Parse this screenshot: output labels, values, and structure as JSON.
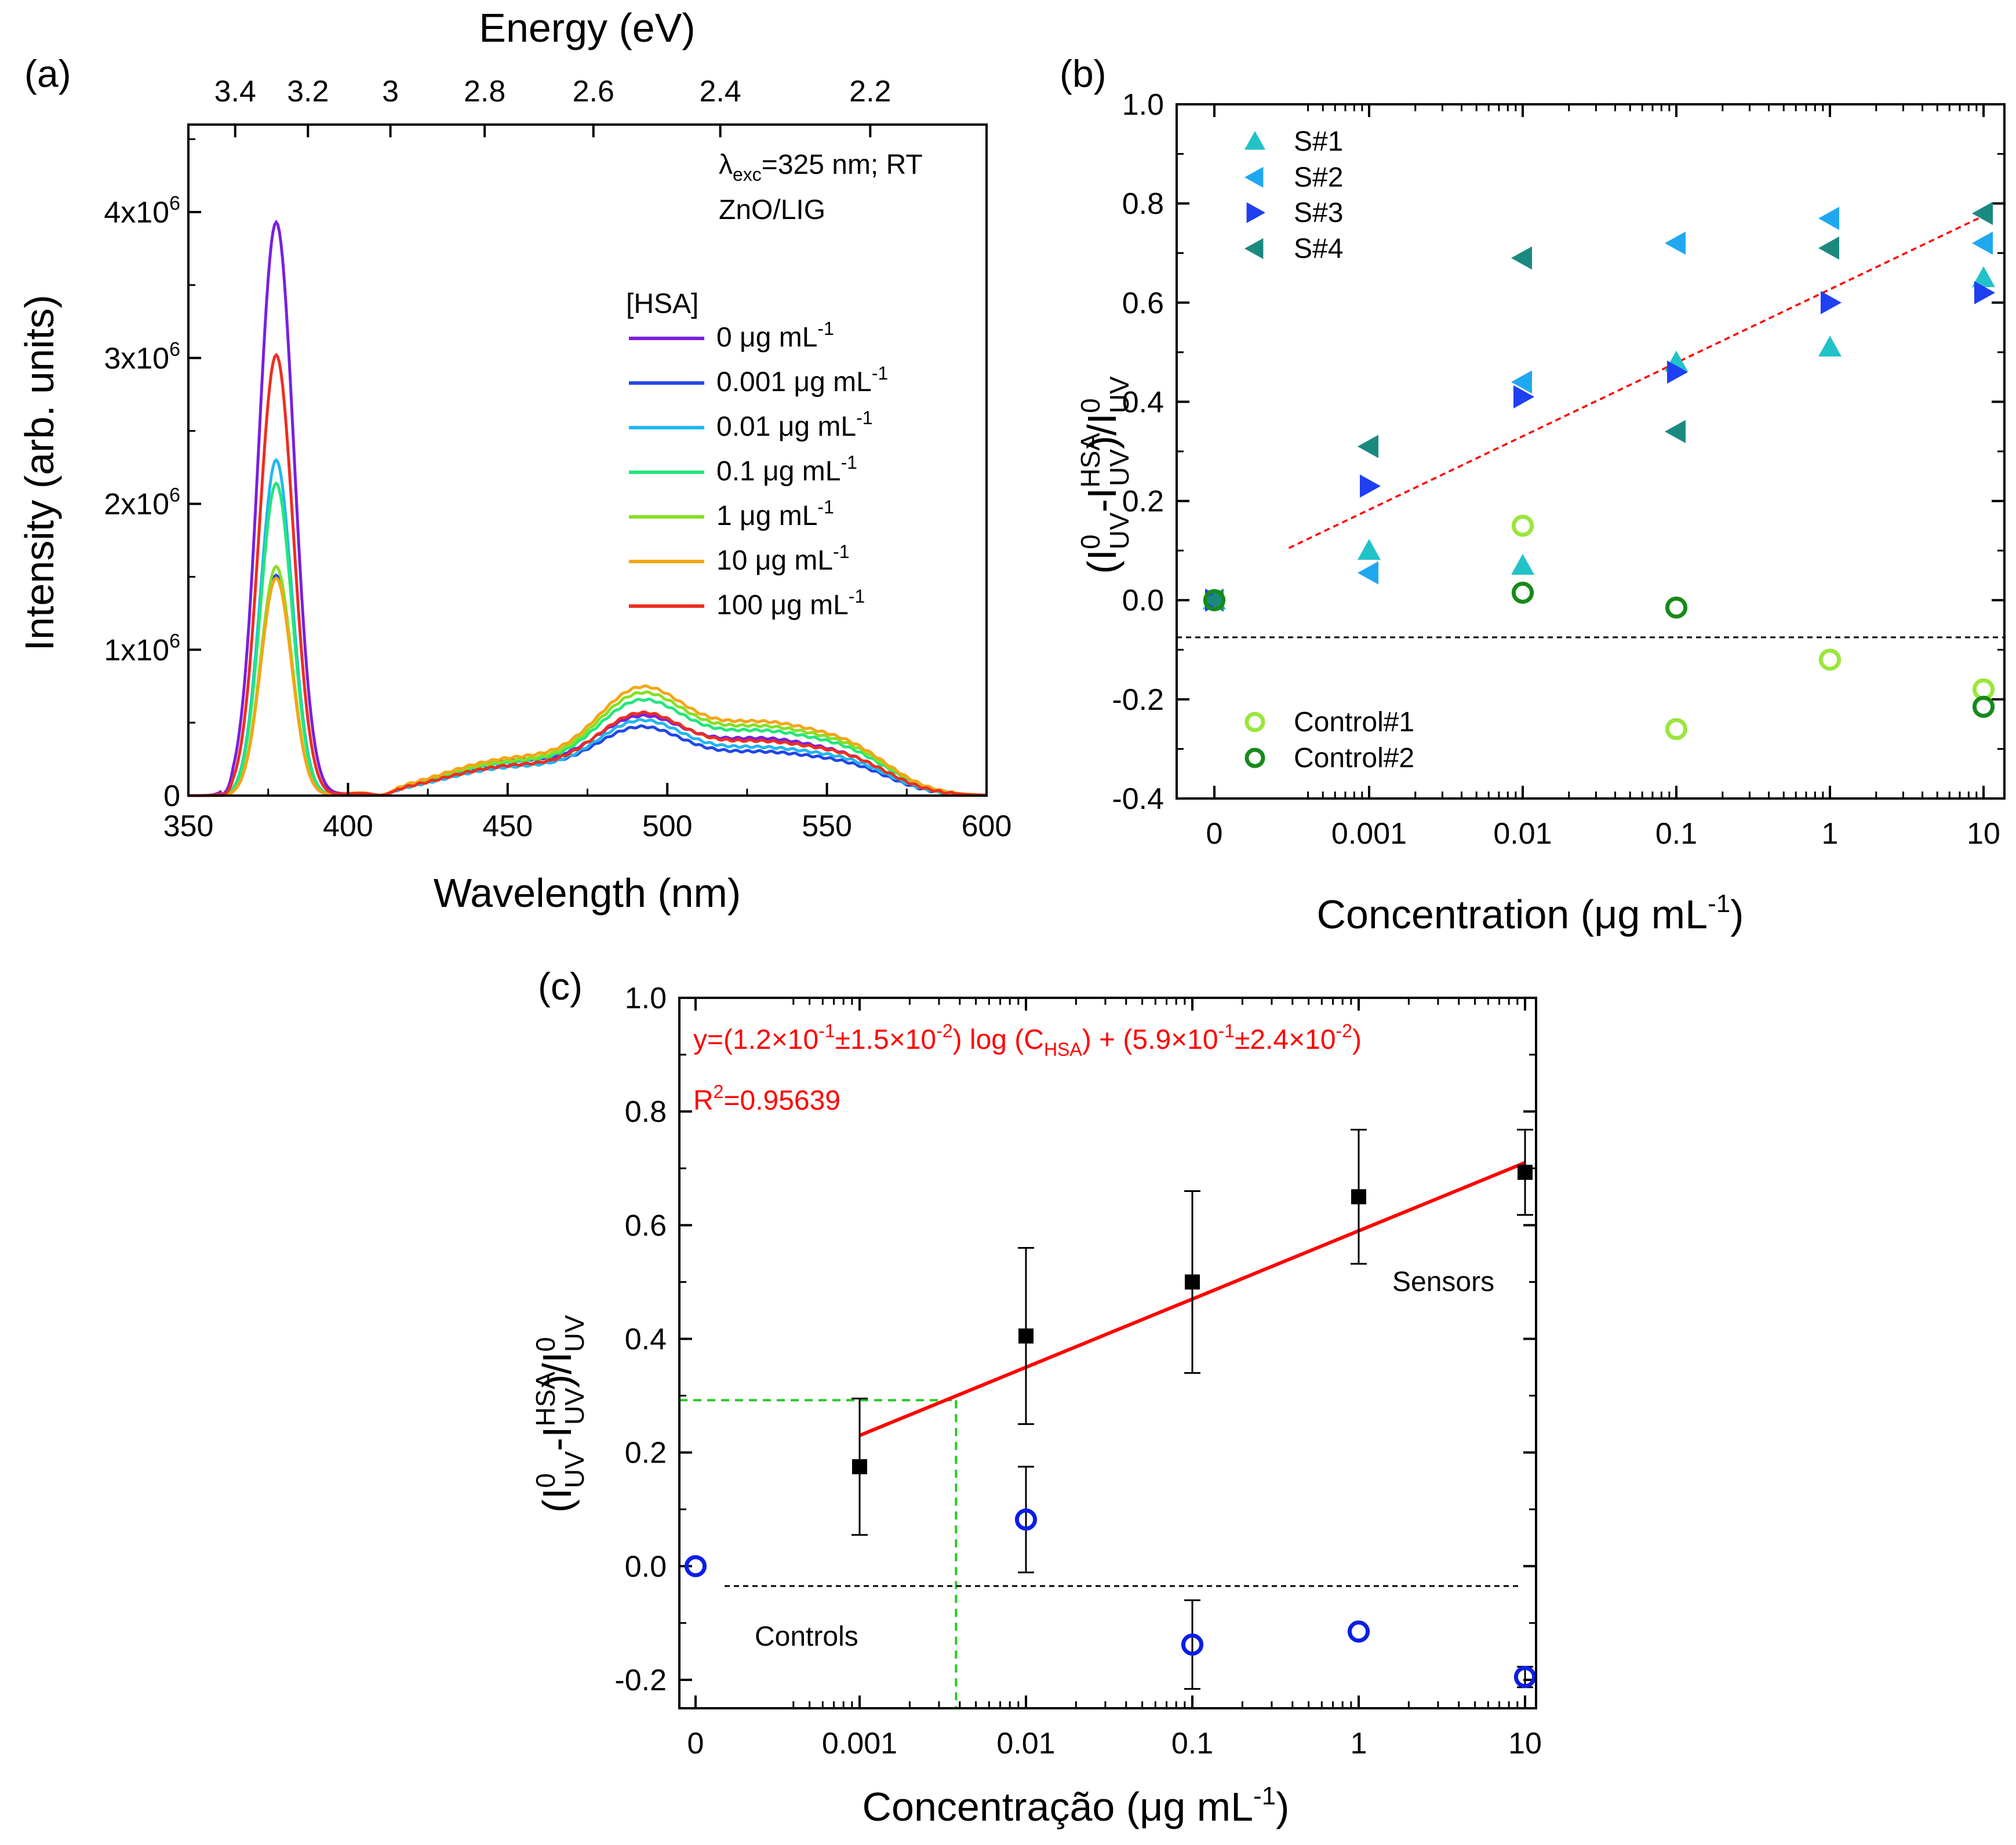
{
  "colors": {
    "c0": "#7a1fe0",
    "c0001": "#2147e6",
    "c001": "#22b7ef",
    "c01": "#24e67c",
    "c1": "#86e024",
    "c10": "#f5a515",
    "c100": "#ee2e1f",
    "s1": "#22c2c9",
    "s2": "#1fa8f0",
    "s3": "#1f3ff2",
    "s4": "#1a8a80",
    "control1": "#9be63c",
    "control2": "#178a1a",
    "fit": "#ff0000",
    "dash_green": "#22cc22",
    "control_blue": "#0a1ee6"
  },
  "chart_data": [
    {
      "panel": "(a)",
      "type": "line",
      "title": "",
      "xlabel": "Wavelength (nm)",
      "ylabel": "Intensity (arb. units)",
      "top_xlabel": "Energy (eV)",
      "xlim": [
        350,
        600
      ],
      "ylim": [
        0,
        4600000
      ],
      "x_ticks": [
        "350",
        "400",
        "450",
        "500",
        "550",
        "600"
      ],
      "x_tick_values": [
        350,
        400,
        450,
        500,
        550,
        600
      ],
      "y_ticks": [
        {
          "base": "0",
          "exp": ""
        },
        {
          "base": "1x10",
          "exp": "6"
        },
        {
          "base": "2x10",
          "exp": "6"
        },
        {
          "base": "3x10",
          "exp": "6"
        },
        {
          "base": "4x10",
          "exp": "6"
        }
      ],
      "y_tick_values": [
        0,
        1000000,
        2000000,
        3000000,
        4000000
      ],
      "top_ticks": [
        "3.4",
        "3.2",
        "3",
        "2.8",
        "2.6",
        "2.4",
        "2.2"
      ],
      "top_tick_values": [
        3.4,
        3.2,
        3.0,
        2.8,
        2.6,
        2.4,
        2.2
      ],
      "annotation_lambda": "λ",
      "annotation_exc": "exc",
      "annotation_rest": "=325 nm; RT",
      "annotation_sample": "ZnO/LIG",
      "legend_title": "[HSA]",
      "series": [
        {
          "name": "0 μg mL",
          "sup": "-1",
          "color_key": "c0",
          "peak": 3930000,
          "width": 5.5,
          "visA": 230000,
          "visB": 420000,
          "visC": 380000
        },
        {
          "name": "0.001 μg mL",
          "sup": "-1",
          "color_key": "c0001",
          "peak": 1510000,
          "width": 4.8,
          "visA": 200000,
          "visB": 370000,
          "visC": 290000
        },
        {
          "name": "0.01 μg mL",
          "sup": "-1",
          "color_key": "c001",
          "peak": 2300000,
          "width": 4.9,
          "visA": 190000,
          "visB": 410000,
          "visC": 320000
        },
        {
          "name": "0.1 μg mL",
          "sup": "-1",
          "color_key": "c01",
          "peak": 2140000,
          "width": 4.9,
          "visA": 220000,
          "visB": 520000,
          "visC": 430000
        },
        {
          "name": "1 μg mL",
          "sup": "-1",
          "color_key": "c1",
          "peak": 1570000,
          "width": 4.8,
          "visA": 230000,
          "visB": 560000,
          "visC": 460000
        },
        {
          "name": "10 μg mL",
          "sup": "-1",
          "color_key": "c10",
          "peak": 1490000,
          "width": 4.8,
          "visA": 250000,
          "visB": 590000,
          "visC": 490000
        },
        {
          "name": "100 μg mL",
          "sup": "-1",
          "color_key": "c100",
          "peak": 3020000,
          "width": 5.3,
          "visA": 200000,
          "visB": 450000,
          "visC": 360000
        }
      ]
    },
    {
      "panel": "(b)",
      "type": "scatter",
      "xlabel_main": "Concentration (μg mL",
      "xlabel_sup": "-1",
      "xlabel_end": ")",
      "ylabel": "(I⁰UV − I^HSA UV)/I⁰UV",
      "ylim": [
        -0.4,
        1.0
      ],
      "x_ticks": [
        "0",
        "0.001",
        "0.01",
        "0.1",
        "1",
        "10"
      ],
      "y_ticks": [
        "-0.4",
        "-0.2",
        "0.0",
        "0.2",
        "0.4",
        "0.6",
        "0.8",
        "1.0"
      ],
      "y_tick_values": [
        -0.4,
        -0.2,
        0.0,
        0.2,
        0.4,
        0.6,
        0.8,
        1.0
      ],
      "series": [
        {
          "name": "S#1",
          "marker": "triangle-up",
          "color_key": "s1",
          "values": [
            0.0,
            0.1,
            0.07,
            0.48,
            0.51,
            0.65
          ]
        },
        {
          "name": "S#2",
          "marker": "triangle-left",
          "color_key": "s2",
          "values": [
            0.0,
            0.055,
            0.44,
            0.72,
            0.77,
            0.72
          ]
        },
        {
          "name": "S#3",
          "marker": "triangle-right",
          "color_key": "s3",
          "values": [
            0.0,
            0.23,
            0.41,
            0.46,
            0.6,
            0.62
          ]
        },
        {
          "name": "S#4",
          "marker": "triangle-left",
          "color_key": "s4",
          "values": [
            0.0,
            0.31,
            0.69,
            0.34,
            0.71,
            0.78
          ]
        },
        {
          "name": "Control#1",
          "marker": "circle-open",
          "color_key": "control1",
          "values": [
            0.0,
            null,
            0.15,
            -0.26,
            -0.12,
            -0.18
          ]
        },
        {
          "name": "Control#2",
          "marker": "circle-open",
          "color_key": "control2",
          "values": [
            0.0,
            null,
            0.015,
            -0.015,
            null,
            -0.215
          ]
        }
      ],
      "fit_line": {
        "x_from": 0.0003,
        "x_to": 10,
        "y_from": 0.105,
        "y_to": 0.775
      },
      "baseline": -0.075
    },
    {
      "panel": "(c)",
      "type": "scatter",
      "xlabel_main": "Concentração (μg mL",
      "xlabel_sup": "-1",
      "xlabel_end": ")",
      "ylabel": "(I⁰UV − I^HSA UV)/I⁰UV",
      "ylim": [
        -0.25,
        1.0
      ],
      "x_ticks": [
        "0",
        "0.001",
        "0.01",
        "0.1",
        "1",
        "10"
      ],
      "y_ticks": [
        "-0.2",
        "0.0",
        "0.2",
        "0.4",
        "0.6",
        "0.8",
        "1.0"
      ],
      "y_tick_values": [
        -0.2,
        0.0,
        0.2,
        0.4,
        0.6,
        0.8,
        1.0
      ],
      "equation_a": "y=(1.2×10",
      "equation_a_sup": "-1",
      "equation_b": "±1.5×10",
      "equation_b_sup": "-2",
      "equation_c": ") log (C",
      "equation_c_sub": "HSA",
      "equation_d": ") + (5.9×10",
      "equation_d_sup": "-1",
      "equation_e": "±2.4×10",
      "equation_e_sup": "-2",
      "equation_f": ")",
      "r2_a": "R",
      "r2_sup": "2",
      "r2_b": "=0.95639",
      "label_sensors": "Sensors",
      "label_controls": "Controls",
      "sensors": [
        {
          "x": "0.001",
          "y": 0.175,
          "err": 0.12
        },
        {
          "x": "0.01",
          "y": 0.405,
          "err": 0.155
        },
        {
          "x": "0.1",
          "y": 0.5,
          "err": 0.16
        },
        {
          "x": "1",
          "y": 0.65,
          "err": 0.118
        },
        {
          "x": "10",
          "y": 0.693,
          "err": 0.075
        }
      ],
      "controls": [
        {
          "x": "0",
          "y": 0.0,
          "err": 0
        },
        {
          "x": "0.01",
          "y": 0.082,
          "err": 0.093
        },
        {
          "x": "0.1",
          "y": -0.138,
          "err": 0.078
        },
        {
          "x": "1",
          "y": -0.115,
          "err": 0
        },
        {
          "x": "10",
          "y": -0.195,
          "err": 0.018
        }
      ],
      "fit": {
        "slope": 0.12,
        "intercept": 0.59,
        "x_from": 0.001,
        "x_to": 10
      },
      "lod": {
        "x": 0.0038,
        "y": 0.292
      },
      "baseline": -0.035
    }
  ]
}
